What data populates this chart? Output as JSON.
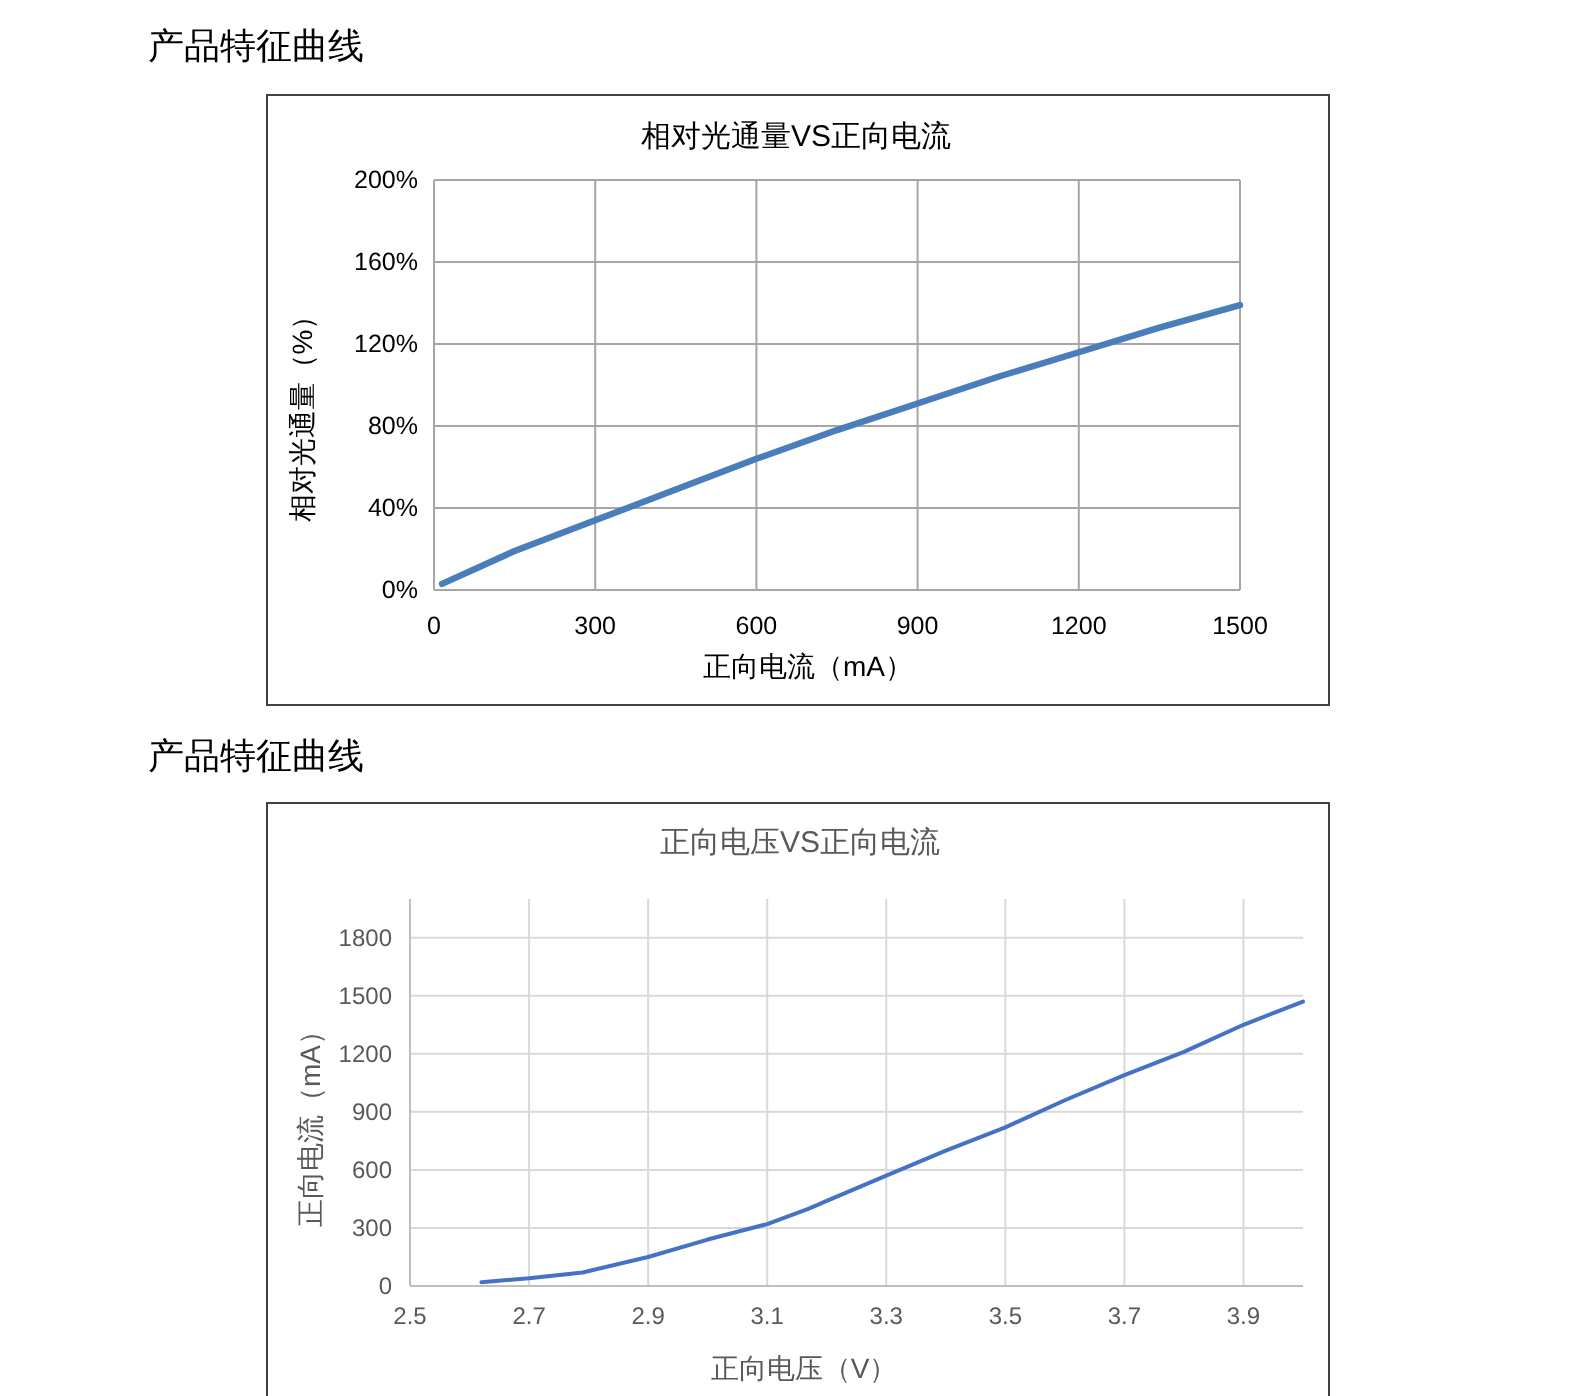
{
  "chart_data": [
    {
      "type": "line",
      "title": "相对光通量VS正向电流",
      "xlabel": "正向电流（mA）",
      "ylabel": "相对光通量（%）",
      "annotations": [
        "产品特征曲线"
      ],
      "x": [
        15,
        150,
        300,
        450,
        600,
        750,
        900,
        1050,
        1200,
        1350,
        1500
      ],
      "series": [
        {
          "color": "#4a7ebb",
          "values": [
            3,
            19,
            34,
            49,
            64,
            78,
            91,
            104,
            116,
            128,
            139
          ]
        }
      ],
      "xlim": [
        0,
        1500
      ],
      "xticks": [
        0,
        300,
        600,
        900,
        1200,
        1500
      ],
      "ylim": [
        0,
        200
      ],
      "yticks": [
        {
          "value": 0,
          "label": "0%"
        },
        {
          "value": 40,
          "label": "40%"
        },
        {
          "value": 80,
          "label": "80%"
        },
        {
          "value": 120,
          "label": "120%"
        },
        {
          "value": 160,
          "label": "160%"
        },
        {
          "value": 200,
          "label": "200%"
        }
      ],
      "grid": true
    },
    {
      "type": "line",
      "title": "正向电压VS正向电流",
      "xlabel": "正向电压（V）",
      "ylabel": "正向电流（mA）",
      "annotations": [
        "产品特征曲线"
      ],
      "x": [
        2.62,
        2.7,
        2.79,
        2.9,
        3.0,
        3.1,
        3.17,
        3.2,
        3.3,
        3.4,
        3.5,
        3.6,
        3.7,
        3.8,
        3.9,
        4.0
      ],
      "series": [
        {
          "color": "#4472c4",
          "values": [
            20,
            40,
            70,
            150,
            240,
            320,
            400,
            440,
            570,
            700,
            820,
            960,
            1090,
            1210,
            1350,
            1470
          ]
        }
      ],
      "xlim": [
        2.5,
        4.0
      ],
      "xticks": [
        2.5,
        2.7,
        2.9,
        3.1,
        3.3,
        3.5,
        3.7,
        3.9
      ],
      "ylim": [
        0,
        2000
      ],
      "yticks": [
        0,
        300,
        600,
        900,
        1200,
        1500,
        1800
      ],
      "grid": true
    }
  ]
}
